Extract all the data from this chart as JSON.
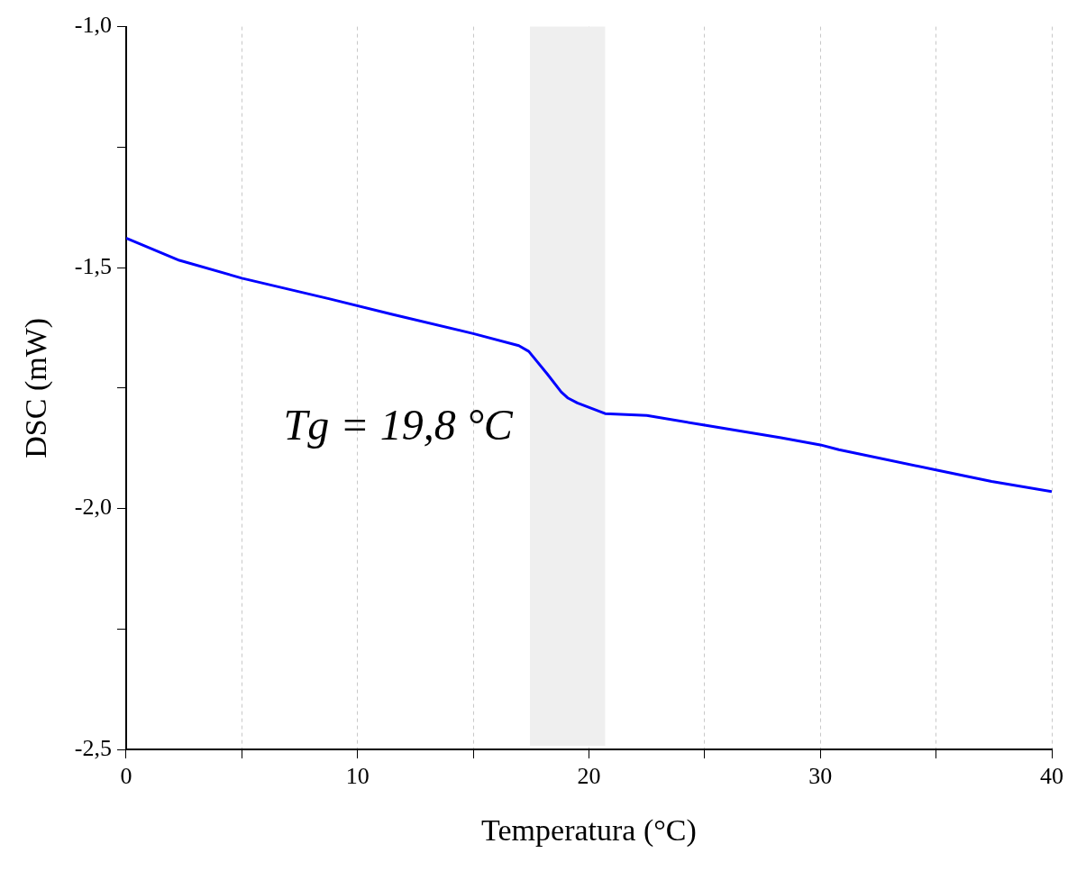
{
  "chart_data": {
    "type": "line",
    "xlabel": "Temperatura (°C)",
    "ylabel": "DSC (mW)",
    "x": [
      0,
      2.3,
      5,
      8.8,
      11.5,
      15,
      16.97,
      17.4,
      18.2,
      18.8,
      19.1,
      19.5,
      20.7,
      22.5,
      25,
      28.3,
      30,
      30.8,
      35,
      37.4,
      40
    ],
    "values": [
      -1.439,
      -1.485,
      -1.522,
      -1.565,
      -1.597,
      -1.637,
      -1.662,
      -1.674,
      -1.721,
      -1.758,
      -1.771,
      -1.781,
      -1.803,
      -1.807,
      -1.827,
      -1.853,
      -1.868,
      -1.878,
      -1.92,
      -1.944,
      -1.965
    ],
    "color": "#0000ff",
    "xlim": [
      0,
      40
    ],
    "xticks": [
      0,
      {
        "value": 5,
        "label": null
      },
      10,
      {
        "value": 15,
        "label": null
      },
      20,
      {
        "value": 25,
        "label": null
      },
      30,
      {
        "value": 35,
        "label": null
      },
      40
    ],
    "ylim": [
      -2.5,
      -1.0
    ],
    "yticks": [
      {
        "value": -2.5,
        "label": "-2,5"
      },
      {
        "value": -2.25,
        "label": null
      },
      {
        "value": -2.0,
        "label": "-2,0"
      },
      {
        "value": -1.75,
        "label": null
      },
      {
        "value": -1.5,
        "label": "-1,5"
      },
      {
        "value": -1.25,
        "label": null
      },
      {
        "value": -1.0,
        "label": "-1,0"
      }
    ],
    "bands": [
      {
        "axis": "x",
        "from": 17.45,
        "to": 20.7,
        "color": "#efefef"
      }
    ],
    "annotations": [
      "Tg = 19,8 °C"
    ],
    "grid": "x",
    "legend": false,
    "marker": "none",
    "line_style": "solid"
  }
}
